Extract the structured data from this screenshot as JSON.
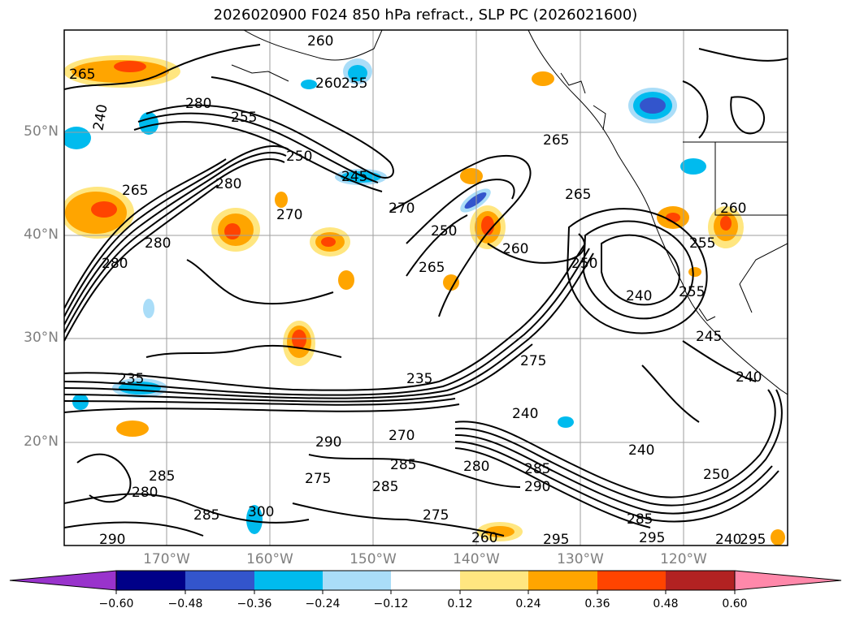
{
  "title": "2026020900 F024 850 hPa refract., SLP PC (2026021600)",
  "map": {
    "lat_labels": [
      "50°N",
      "40°N",
      "30°N",
      "20°N"
    ],
    "lon_labels": [
      "170°W",
      "160°W",
      "150°W",
      "140°W",
      "130°W",
      "120°W"
    ],
    "contour_labels": [
      "265",
      "240",
      "280",
      "255",
      "250",
      "245",
      "255",
      "260",
      "260",
      "280",
      "280",
      "270",
      "270",
      "265",
      "265",
      "280",
      "250",
      "265",
      "260",
      "255",
      "260",
      "250",
      "245",
      "235",
      "265",
      "275",
      "235",
      "240",
      "270",
      "290",
      "285",
      "280",
      "275",
      "285",
      "280",
      "285",
      "290",
      "240",
      "285",
      "250",
      "295",
      "300",
      "290",
      "285",
      "285",
      "295",
      "275",
      "260",
      "295",
      "240",
      "240",
      "240",
      "255"
    ]
  },
  "colorbar": {
    "colors": [
      "#9933cc",
      "#000088",
      "#3355cc",
      "#00bbee",
      "#aaddf8",
      "#ffffff",
      "#ffe680",
      "#ffa500",
      "#ff4400",
      "#b22222",
      "#ff88aa"
    ],
    "labels": [
      "−0.60",
      "−0.48",
      "−0.36",
      "−0.24",
      "−0.12",
      "0.12",
      "0.24",
      "0.36",
      "0.48",
      "0.60"
    ]
  }
}
